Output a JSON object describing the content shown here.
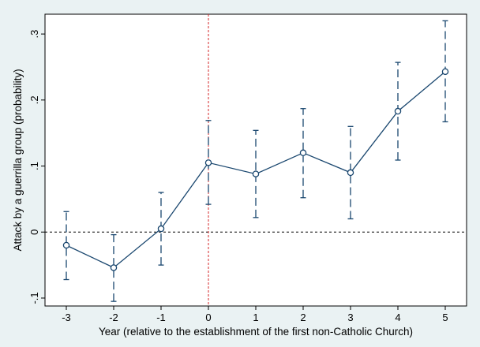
{
  "chart_data": {
    "type": "line",
    "title": "",
    "xlabel": "Year (relative to the establishment of the first non-Catholic Church)",
    "ylabel": "Attack by a guerrilla group (probability)",
    "x": [
      -3,
      -2,
      -1,
      0,
      1,
      2,
      3,
      4,
      5
    ],
    "series": [
      {
        "values": [
          -0.02,
          -0.054,
          0.005,
          0.105,
          0.088,
          0.12,
          0.09,
          0.183,
          0.243
        ],
        "ci_lower": [
          -0.072,
          -0.105,
          -0.05,
          0.042,
          0.022,
          0.052,
          0.02,
          0.109,
          0.167
        ],
        "ci_upper": [
          0.031,
          -0.004,
          0.06,
          0.169,
          0.154,
          0.187,
          0.16,
          0.257,
          0.32
        ]
      }
    ],
    "x_ticks": [
      -3,
      -2,
      -1,
      0,
      1,
      2,
      3,
      4,
      5
    ],
    "x_tick_labels": [
      "-3",
      "-2",
      "-1",
      "0",
      "1",
      "2",
      "3",
      "4",
      "5"
    ],
    "y_ticks": [
      -0.1,
      0,
      0.1,
      0.2,
      0.3
    ],
    "y_tick_labels": [
      "-.1",
      "0",
      ".1",
      ".2",
      ".3"
    ],
    "xlim": [
      -3.45,
      5.45
    ],
    "ylim": [
      -0.112,
      0.33
    ],
    "reference_lines": [
      {
        "axis": "y",
        "value": 0,
        "style": "dashed"
      },
      {
        "axis": "x",
        "value": 0,
        "style": "dashed"
      }
    ],
    "grid": false,
    "legend": "none",
    "colors": {
      "background": "#eaf2f3",
      "plot_background": "#ffffff",
      "series": "#1a476f",
      "zero_line": "#000000",
      "event_line": "#d62728"
    }
  }
}
